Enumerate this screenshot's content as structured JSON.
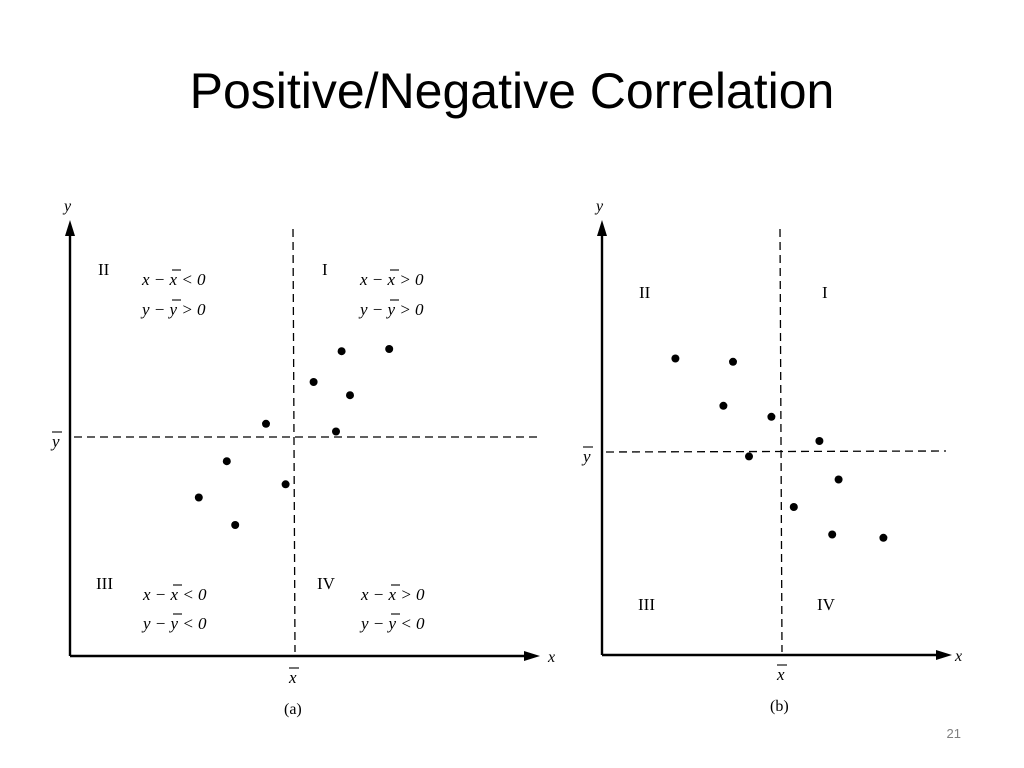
{
  "title": "Positive/Negative Correlation",
  "slide_number": "21",
  "panels": [
    {
      "caption": "(a)",
      "axis_x": "x",
      "axis_y": "y",
      "mean_x": "x",
      "mean_y": "y",
      "quadrants": {
        "q1": {
          "numeral": "I",
          "cond1": "x − x > 0",
          "cond2": "y − y > 0"
        },
        "q2": {
          "numeral": "II",
          "cond1": "x − x < 0",
          "cond2": "y − y > 0"
        },
        "q3": {
          "numeral": "III",
          "cond1": "x − x < 0",
          "cond2": "y − y < 0"
        },
        "q4": {
          "numeral": "IV",
          "cond1": "x − x > 0",
          "cond2": "y − y < 0"
        }
      },
      "points": [
        [
          -1.7,
          -0.55
        ],
        [
          -1.05,
          -0.8
        ],
        [
          -1.2,
          -0.22
        ],
        [
          -0.5,
          0.12
        ],
        [
          -0.15,
          -0.43
        ],
        [
          0.35,
          0.5
        ],
        [
          0.85,
          0.78
        ],
        [
          1.0,
          0.38
        ],
        [
          0.75,
          0.05
        ],
        [
          1.7,
          0.8
        ]
      ]
    },
    {
      "caption": "(b)",
      "axis_x": "x",
      "axis_y": "y",
      "mean_x": "x",
      "mean_y": "y",
      "quadrants": {
        "q1": {
          "numeral": "I"
        },
        "q2": {
          "numeral": "II"
        },
        "q3": {
          "numeral": "III"
        },
        "q4": {
          "numeral": "IV"
        }
      },
      "points": [
        [
          -1.65,
          0.85
        ],
        [
          -0.75,
          0.82
        ],
        [
          -0.9,
          0.42
        ],
        [
          -0.15,
          0.32
        ],
        [
          -0.5,
          -0.04
        ],
        [
          0.6,
          0.1
        ],
        [
          0.2,
          -0.5
        ],
        [
          0.9,
          -0.25
        ],
        [
          0.8,
          -0.75
        ],
        [
          1.6,
          -0.78
        ]
      ]
    }
  ]
}
